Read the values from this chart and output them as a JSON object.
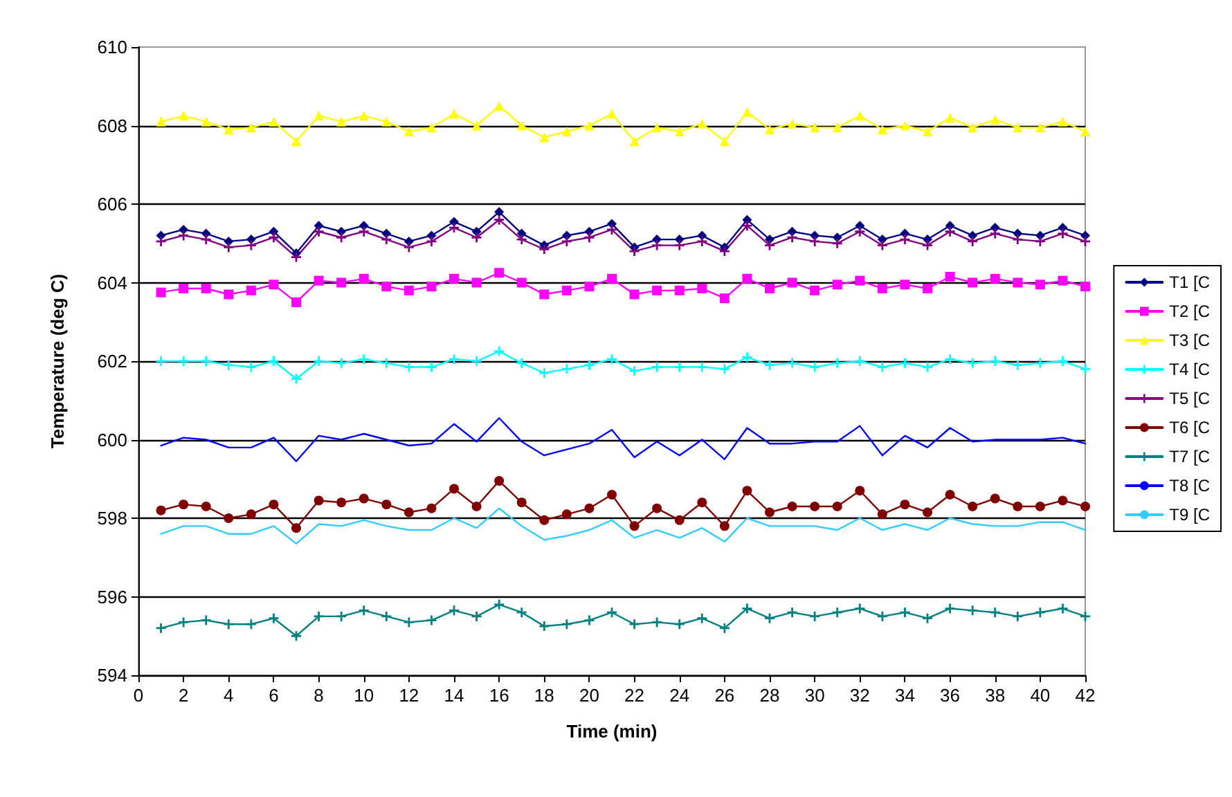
{
  "chart_data": {
    "type": "line",
    "xlabel": "Time (min)",
    "ylabel": "Temperature (deg C)",
    "x": [
      1,
      2,
      3,
      4,
      5,
      6,
      7,
      8,
      9,
      10,
      11,
      12,
      13,
      14,
      15,
      16,
      17,
      18,
      19,
      20,
      21,
      22,
      23,
      24,
      25,
      26,
      27,
      28,
      29,
      30,
      31,
      32,
      33,
      34,
      35,
      36,
      37,
      38,
      39,
      40,
      41,
      42
    ],
    "xlim": [
      0,
      42
    ],
    "xticks": [
      0,
      2,
      4,
      6,
      8,
      10,
      12,
      14,
      16,
      18,
      20,
      22,
      24,
      26,
      28,
      30,
      32,
      34,
      36,
      38,
      40,
      42
    ],
    "ylim": [
      594,
      610
    ],
    "yticks": [
      594,
      596,
      598,
      600,
      602,
      604,
      606,
      608,
      610
    ],
    "grid": "y",
    "legend": "right",
    "series": [
      {
        "name": "T1 [C",
        "color": "#000080",
        "marker": "diamond",
        "values": [
          605.2,
          605.35,
          605.25,
          605.05,
          605.1,
          605.3,
          604.75,
          605.45,
          605.3,
          605.45,
          605.25,
          605.05,
          605.2,
          605.55,
          605.3,
          605.8,
          605.25,
          604.95,
          605.2,
          605.3,
          605.5,
          604.9,
          605.1,
          605.1,
          605.2,
          604.9,
          605.6,
          605.1,
          605.3,
          605.2,
          605.15,
          605.45,
          605.1,
          605.25,
          605.1,
          605.45,
          605.2,
          605.4,
          605.25,
          605.2,
          605.4,
          605.2
        ]
      },
      {
        "name": "T2 [C",
        "color": "#ff00ff",
        "marker": "square",
        "values": [
          603.75,
          603.85,
          603.85,
          603.7,
          603.8,
          603.95,
          603.5,
          604.05,
          604.0,
          604.1,
          603.9,
          603.8,
          603.9,
          604.1,
          604.0,
          604.25,
          604.0,
          603.7,
          603.8,
          603.9,
          604.1,
          603.7,
          603.8,
          603.8,
          603.85,
          603.6,
          604.1,
          603.85,
          604.0,
          603.8,
          603.95,
          604.05,
          603.85,
          603.95,
          603.85,
          604.15,
          604.0,
          604.1,
          604.0,
          603.95,
          604.05,
          603.9
        ]
      },
      {
        "name": "T3 [C",
        "color": "#ffff00",
        "marker": "triangle",
        "values": [
          608.1,
          608.25,
          608.1,
          607.9,
          607.95,
          608.1,
          607.6,
          608.25,
          608.1,
          608.25,
          608.1,
          607.85,
          607.95,
          608.3,
          608.0,
          608.5,
          608.0,
          607.7,
          607.85,
          608.0,
          608.3,
          607.6,
          607.95,
          607.85,
          608.05,
          607.6,
          608.35,
          607.9,
          608.05,
          607.95,
          607.95,
          608.25,
          607.9,
          608.0,
          607.85,
          608.2,
          607.95,
          608.15,
          607.95,
          607.95,
          608.1,
          607.85
        ]
      },
      {
        "name": "T4 [C",
        "color": "#00ffff",
        "marker": "cross",
        "values": [
          602.0,
          602.0,
          602.0,
          601.9,
          601.85,
          602.0,
          601.55,
          602.0,
          601.95,
          602.05,
          601.95,
          601.85,
          601.85,
          602.05,
          602.0,
          602.25,
          601.95,
          601.7,
          601.8,
          601.9,
          602.05,
          601.75,
          601.85,
          601.85,
          601.85,
          601.8,
          602.1,
          601.9,
          601.95,
          601.85,
          601.95,
          602.0,
          601.85,
          601.95,
          601.85,
          602.05,
          601.95,
          602.0,
          601.9,
          601.95,
          602.0,
          601.8
        ]
      },
      {
        "name": "T5 [C",
        "color": "#800080",
        "marker": "cross",
        "values": [
          605.05,
          605.2,
          605.1,
          604.9,
          604.95,
          605.15,
          604.65,
          605.3,
          605.15,
          605.3,
          605.1,
          604.9,
          605.05,
          605.4,
          605.15,
          605.6,
          605.1,
          604.85,
          605.05,
          605.15,
          605.35,
          604.8,
          604.95,
          604.95,
          605.05,
          604.8,
          605.45,
          604.95,
          605.15,
          605.05,
          605.0,
          605.3,
          604.95,
          605.1,
          604.95,
          605.3,
          605.05,
          605.25,
          605.1,
          605.05,
          605.25,
          605.05
        ]
      },
      {
        "name": "T6 [C",
        "color": "#800000",
        "marker": "circle",
        "values": [
          598.2,
          598.35,
          598.3,
          598.0,
          598.1,
          598.35,
          597.75,
          598.45,
          598.4,
          598.5,
          598.35,
          598.15,
          598.25,
          598.75,
          598.3,
          598.95,
          598.4,
          597.95,
          598.1,
          598.25,
          598.6,
          597.8,
          598.25,
          597.95,
          598.4,
          597.8,
          598.7,
          598.15,
          598.3,
          598.3,
          598.3,
          598.7,
          598.1,
          598.35,
          598.15,
          598.6,
          598.3,
          598.5,
          598.3,
          598.3,
          598.45,
          598.3
        ]
      },
      {
        "name": "T7 [C",
        "color": "#008080",
        "marker": "cross",
        "values": [
          595.2,
          595.35,
          595.4,
          595.3,
          595.3,
          595.45,
          595.0,
          595.5,
          595.5,
          595.65,
          595.5,
          595.35,
          595.4,
          595.65,
          595.5,
          595.8,
          595.6,
          595.25,
          595.3,
          595.4,
          595.6,
          595.3,
          595.35,
          595.3,
          595.45,
          595.2,
          595.7,
          595.45,
          595.6,
          595.5,
          595.6,
          595.7,
          595.5,
          595.6,
          595.45,
          595.7,
          595.65,
          595.6,
          595.5,
          595.6,
          595.7,
          595.5
        ]
      },
      {
        "name": "T8 [C",
        "color": "#0000ff",
        "marker": "none",
        "values": [
          599.85,
          600.05,
          600.0,
          599.8,
          599.8,
          600.05,
          599.45,
          600.1,
          600.0,
          600.15,
          600.0,
          599.85,
          599.9,
          600.4,
          599.95,
          600.55,
          599.95,
          599.6,
          599.75,
          599.9,
          600.25,
          599.55,
          599.95,
          599.6,
          600.0,
          599.5,
          600.3,
          599.9,
          599.9,
          599.95,
          599.95,
          600.35,
          599.6,
          600.1,
          599.8,
          600.3,
          599.95,
          600.0,
          600.0,
          600.0,
          600.05,
          599.9
        ]
      },
      {
        "name": "T9 [C",
        "color": "#33ccff",
        "marker": "none",
        "values": [
          597.6,
          597.8,
          597.8,
          597.6,
          597.6,
          597.8,
          597.35,
          597.85,
          597.8,
          597.95,
          597.8,
          597.7,
          597.7,
          598.0,
          597.75,
          598.25,
          597.8,
          597.45,
          597.55,
          597.7,
          597.95,
          597.5,
          597.7,
          597.5,
          597.75,
          597.4,
          598.0,
          597.8,
          597.8,
          597.8,
          597.7,
          598.0,
          597.7,
          597.85,
          597.7,
          598.0,
          597.85,
          597.8,
          597.8,
          597.9,
          597.9,
          597.7
        ]
      }
    ]
  }
}
